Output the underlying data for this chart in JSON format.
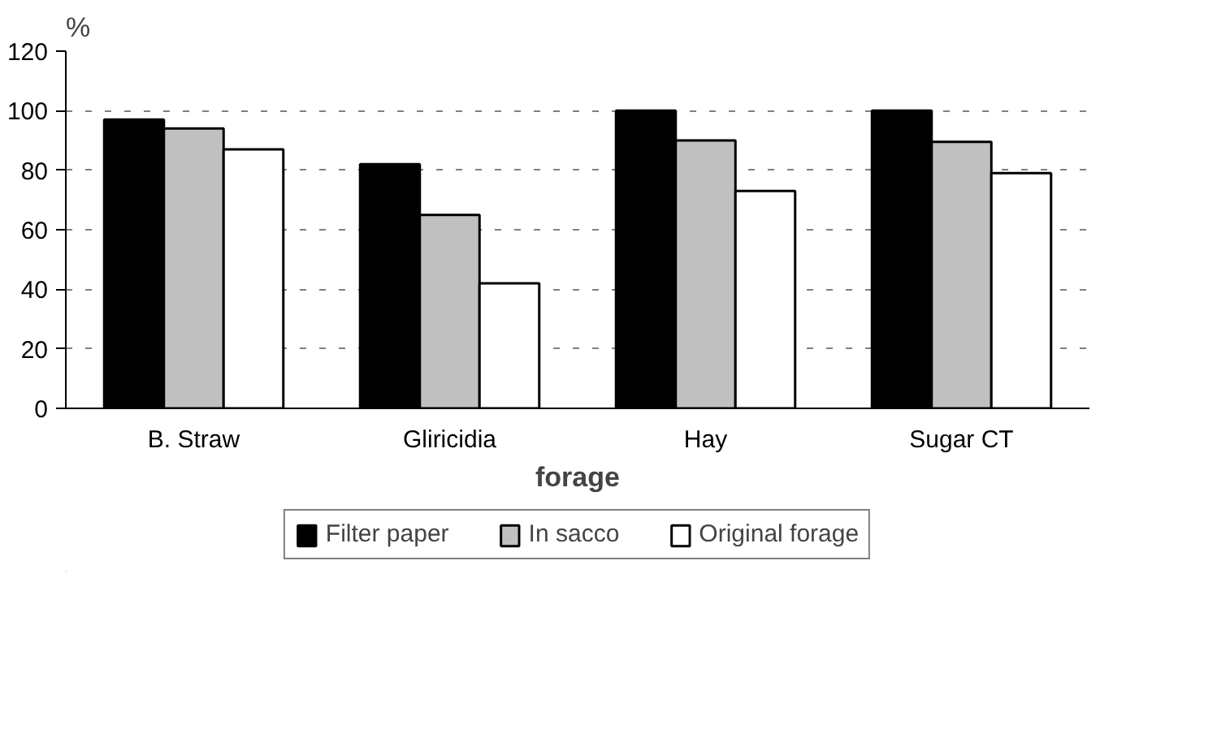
{
  "chart_data": {
    "type": "bar",
    "xlabel": "forage",
    "ylabel": "%",
    "categories": [
      "B. Straw",
      "Gliricidia",
      "Hay",
      "Sugar CT"
    ],
    "series": [
      {
        "name": "Filter paper",
        "color": "#000000",
        "values": [
          97,
          82,
          100,
          100
        ]
      },
      {
        "name": "In sacco",
        "color": "#c0c0c0",
        "values": [
          94,
          65,
          90,
          89.5
        ]
      },
      {
        "name": "Original forage",
        "color": "#ffffff",
        "values": [
          87,
          42,
          73,
          79
        ]
      }
    ],
    "ylim": [
      0,
      120
    ],
    "yticks": [
      0,
      20,
      40,
      60,
      80,
      100,
      120
    ],
    "grid": "y",
    "legend": "bottom"
  }
}
